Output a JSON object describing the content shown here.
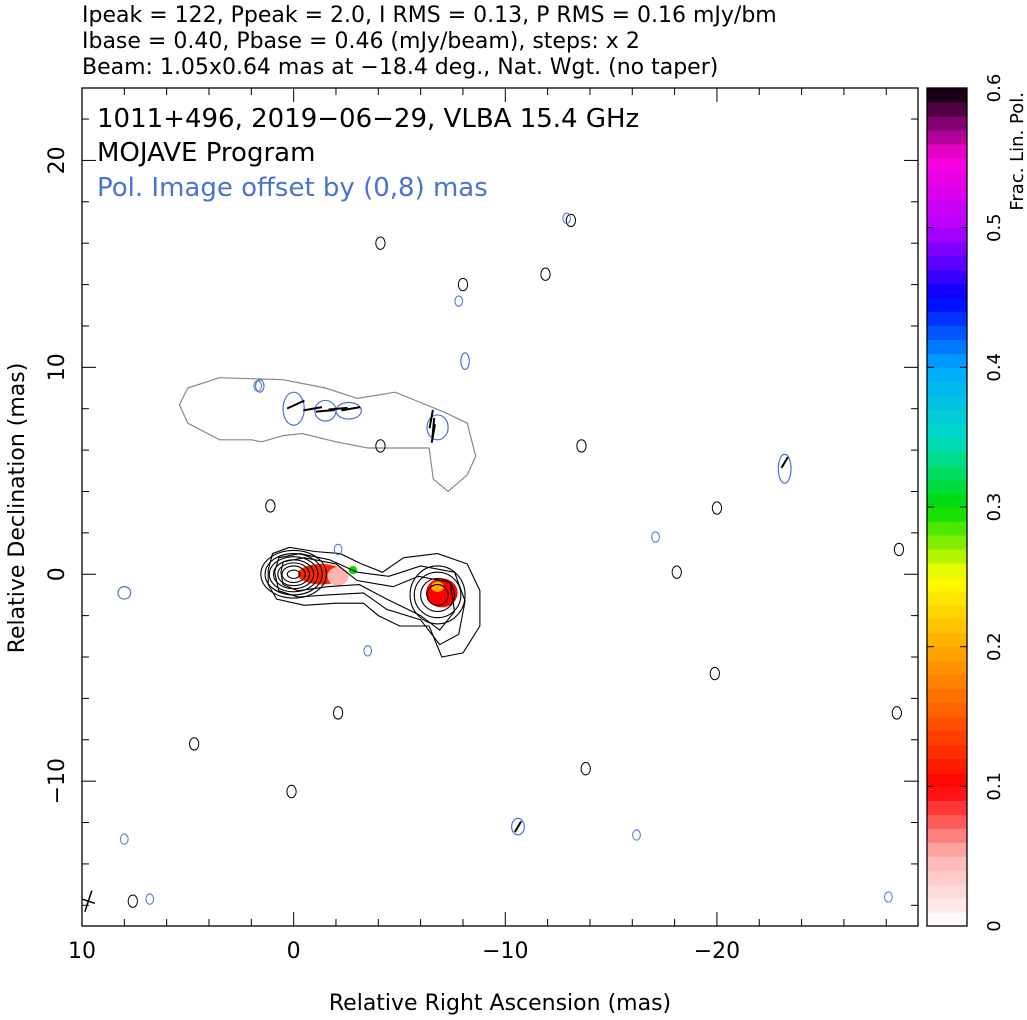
{
  "header": {
    "line1": "Ipeak = 122, Ppeak = 2.0, I RMS = 0.13, P RMS = 0.16 mJy/bm",
    "line2": "Ibase = 0.40, Pbase = 0.46 (mJy/beam), steps: x 2",
    "line3": "Beam: 1.05x0.64 mas at −18.4 deg., Nat. Wgt. (no taper)"
  },
  "annotations": {
    "title": "1011+496, 2019−06−29, VLBA 15.4 GHz",
    "program": "MOJAVE Program",
    "offset_note": "Pol. Image offset by (0,8) mas",
    "offset_note_color": "#4a72d0"
  },
  "colors": {
    "total_intensity_contour": "#000000",
    "pol_intensity_contour": "#4a72d0",
    "pol_shifted_contour": "#888888",
    "evpa_ticks": "#000000"
  },
  "chart_data": {
    "type": "contour",
    "xlabel": "Relative Right Ascension (mas)",
    "ylabel": "Relative Declination (mas)",
    "xlim": [
      10,
      -29.5
    ],
    "ylim": [
      -17,
      23.5
    ],
    "x_ticks": [
      10,
      0,
      -10,
      -20
    ],
    "x_tick_labels": [
      "10",
      "0",
      "−10",
      "−20"
    ],
    "y_ticks": [
      20,
      10,
      0,
      -10
    ],
    "y_tick_labels": [
      "20",
      "10",
      "0",
      "−10"
    ],
    "colorbar": {
      "label": "Frac. Lin. Pol.",
      "range": [
        0,
        0.6
      ],
      "ticks": [
        0,
        0.1,
        0.2,
        0.3,
        0.4,
        0.5,
        0.6
      ],
      "tick_labels": [
        "0",
        "0.1",
        "0.2",
        "0.3",
        "0.4",
        "0.5",
        "0.6"
      ]
    },
    "core_contours": {
      "center": [
        0,
        0
      ],
      "semi_axes": [
        [
          0.3,
          0.2
        ],
        [
          0.55,
          0.4
        ],
        [
          0.75,
          0.55
        ],
        [
          0.95,
          0.7
        ],
        [
          1.15,
          0.85
        ],
        [
          1.35,
          1.0
        ],
        [
          1.55,
          1.15
        ]
      ]
    },
    "jet_contours": [
      [
        [
          1.2,
          0.2
        ],
        [
          1.0,
          1.0
        ],
        [
          0.2,
          1.3
        ],
        [
          -1.0,
          1.1
        ],
        [
          -2.2,
          1.0
        ],
        [
          -3.2,
          0.5
        ],
        [
          -4.2,
          0.1
        ],
        [
          -5.2,
          0.8
        ],
        [
          -6.8,
          1.0
        ],
        [
          -8.2,
          0.5
        ],
        [
          -8.8,
          -0.8
        ],
        [
          -8.8,
          -2.5
        ],
        [
          -8.0,
          -3.8
        ],
        [
          -7.0,
          -4.0
        ],
        [
          -6.4,
          -2.5
        ],
        [
          -5.0,
          -2.5
        ],
        [
          -4.0,
          -2.0
        ],
        [
          -3.3,
          -1.4
        ],
        [
          -2.0,
          -1.4
        ],
        [
          -0.5,
          -1.5
        ],
        [
          0.8,
          -1.2
        ],
        [
          1.2,
          -0.5
        ]
      ],
      [
        [
          0.9,
          0.1
        ],
        [
          0.7,
          0.8
        ],
        [
          -0.3,
          1.0
        ],
        [
          -1.7,
          0.7
        ],
        [
          -3.0,
          0.1
        ],
        [
          -4.5,
          -0.1
        ],
        [
          -6.0,
          0.4
        ],
        [
          -7.6,
          0.1
        ],
        [
          -8.1,
          -1.3
        ],
        [
          -7.8,
          -2.9
        ],
        [
          -6.9,
          -3.4
        ],
        [
          -6.0,
          -2.2
        ],
        [
          -4.4,
          -1.7
        ],
        [
          -3.3,
          -0.9
        ],
        [
          -1.6,
          -1.0
        ],
        [
          -0.2,
          -1.1
        ],
        [
          0.7,
          -0.8
        ]
      ],
      [
        [
          0.6,
          0.1
        ],
        [
          0.5,
          0.6
        ],
        [
          -0.5,
          0.8
        ],
        [
          -2.0,
          0.5
        ],
        [
          -3.0,
          -0.3
        ],
        [
          -4.7,
          -0.6
        ],
        [
          -5.9,
          -0.1
        ],
        [
          -7.4,
          -0.4
        ],
        [
          -7.6,
          -1.8
        ],
        [
          -6.9,
          -2.7
        ],
        [
          -6.0,
          -2.0
        ],
        [
          -4.4,
          -1.2
        ],
        [
          -3.1,
          -0.5
        ],
        [
          -1.6,
          -0.6
        ],
        [
          -0.2,
          -0.8
        ],
        [
          0.5,
          -0.5
        ]
      ]
    ],
    "knot_contours": [
      {
        "center": [
          -6.8,
          -1.0
        ],
        "semi_axes": [
          [
            0.5,
            0.5
          ],
          [
            0.8,
            0.8
          ],
          [
            1.1,
            1.1
          ],
          [
            1.3,
            1.4
          ]
        ]
      }
    ],
    "frac_pol_patches": [
      {
        "center": [
          -1.3,
          0.0
        ],
        "size": [
          2.2,
          1.0
        ],
        "frac": 0.12
      },
      {
        "center": [
          -2.1,
          -0.1
        ],
        "size": [
          1.0,
          0.9
        ],
        "frac": 0.05
      },
      {
        "center": [
          -2.8,
          0.2
        ],
        "size": [
          0.4,
          0.4
        ],
        "frac": 0.3
      },
      {
        "center": [
          -7.0,
          -0.9
        ],
        "size": [
          1.5,
          1.4
        ],
        "frac": 0.1
      },
      {
        "center": [
          -6.8,
          -0.6
        ],
        "size": [
          0.6,
          0.5
        ],
        "frac": 0.2
      }
    ],
    "pol_shifted_outline": [
      [
        5.0,
        9.0
      ],
      [
        3.5,
        9.5
      ],
      [
        0.5,
        9.4
      ],
      [
        -1.5,
        9.0
      ],
      [
        -3.0,
        8.5
      ],
      [
        -4.8,
        8.8
      ],
      [
        -6.0,
        8.3
      ],
      [
        -7.2,
        7.8
      ],
      [
        -8.2,
        7.3
      ],
      [
        -8.6,
        5.7
      ],
      [
        -8.2,
        4.8
      ],
      [
        -7.3,
        4.0
      ],
      [
        -6.6,
        4.6
      ],
      [
        -6.4,
        6.1
      ],
      [
        -4.7,
        6.1
      ],
      [
        -3.5,
        6.1
      ],
      [
        -2.0,
        6.4
      ],
      [
        -0.4,
        6.8
      ],
      [
        0.5,
        6.7
      ],
      [
        1.5,
        6.4
      ],
      [
        2.0,
        6.5
      ],
      [
        3.5,
        6.5
      ],
      [
        5.0,
        7.3
      ],
      [
        5.4,
        8.2
      ]
    ],
    "pol_intensity_blobs": [
      {
        "center": [
          0.0,
          8.0
        ],
        "semi_axes": [
          0.5,
          0.8
        ]
      },
      {
        "center": [
          -1.5,
          7.9
        ],
        "semi_axes": [
          0.5,
          0.5
        ]
      },
      {
        "center": [
          -2.6,
          7.9
        ],
        "semi_axes": [
          0.6,
          0.4
        ]
      },
      {
        "center": [
          -6.8,
          7.1
        ],
        "semi_axes": [
          0.5,
          0.6
        ]
      },
      {
        "center": [
          -23.2,
          5.1
        ],
        "semi_axes": [
          0.3,
          0.7
        ]
      },
      {
        "center": [
          8.0,
          -0.9
        ],
        "semi_axes": [
          0.3,
          0.3
        ]
      },
      {
        "center": [
          -10.6,
          -12.2
        ],
        "semi_axes": [
          0.3,
          0.4
        ]
      },
      {
        "center": [
          1.6,
          9.1
        ],
        "semi_axes": [
          0.2,
          0.3
        ]
      },
      {
        "center": [
          -8.1,
          10.3
        ],
        "semi_axes": [
          0.2,
          0.4
        ]
      }
    ],
    "evpa_vectors": [
      {
        "pos": [
          -0.1,
          8.2
        ],
        "angle": 65,
        "length": 0.9
      },
      {
        "pos": [
          -0.9,
          8.0
        ],
        "angle": 80,
        "length": 0.9
      },
      {
        "pos": [
          -1.5,
          7.9
        ],
        "angle": 85,
        "length": 0.9
      },
      {
        "pos": [
          -2.1,
          8.0
        ],
        "angle": 85,
        "length": 0.9
      },
      {
        "pos": [
          -2.7,
          8.0
        ],
        "angle": 80,
        "length": 0.9
      },
      {
        "pos": [
          -6.5,
          7.5
        ],
        "angle": 10,
        "length": 0.9
      },
      {
        "pos": [
          -6.6,
          7.1
        ],
        "angle": 5,
        "length": 0.9
      },
      {
        "pos": [
          -6.6,
          6.8
        ],
        "angle": 10,
        "length": 0.9
      },
      {
        "pos": [
          -23.2,
          5.4
        ],
        "angle": 30,
        "length": 0.6
      },
      {
        "pos": [
          -10.6,
          -12.2
        ],
        "angle": 30,
        "length": 0.6
      }
    ],
    "noise_contours_black": [
      [
        -4.1,
        16.0
      ],
      [
        -4.1,
        6.2
      ],
      [
        -13.6,
        6.2
      ],
      [
        1.1,
        3.3
      ],
      [
        -20.0,
        3.2
      ],
      [
        -18.1,
        0.1
      ],
      [
        -2.1,
        -6.7
      ],
      [
        0.1,
        -10.5
      ],
      [
        -13.8,
        -9.4
      ],
      [
        -19.9,
        -4.8
      ],
      [
        7.6,
        -15.8
      ],
      [
        -28.5,
        -6.7
      ],
      [
        -28.6,
        1.2
      ],
      [
        4.7,
        -8.2
      ],
      [
        -13.1,
        17.1
      ],
      [
        -11.9,
        14.5
      ],
      [
        -8.0,
        14.0
      ]
    ],
    "noise_contours_blue": [
      [
        1.7,
        9.1
      ],
      [
        -7.8,
        13.2
      ],
      [
        -2.1,
        1.2
      ],
      [
        -17.1,
        1.8
      ],
      [
        6.8,
        -15.7
      ],
      [
        8.0,
        -12.8
      ],
      [
        -16.2,
        -12.6
      ],
      [
        -28.1,
        -15.6
      ],
      [
        -3.5,
        -3.7
      ],
      [
        -12.9,
        17.2
      ]
    ],
    "beam": {
      "pos": [
        9.7,
        -15.8
      ],
      "major": 1.05,
      "minor": 0.64,
      "angle": -18.4
    }
  }
}
